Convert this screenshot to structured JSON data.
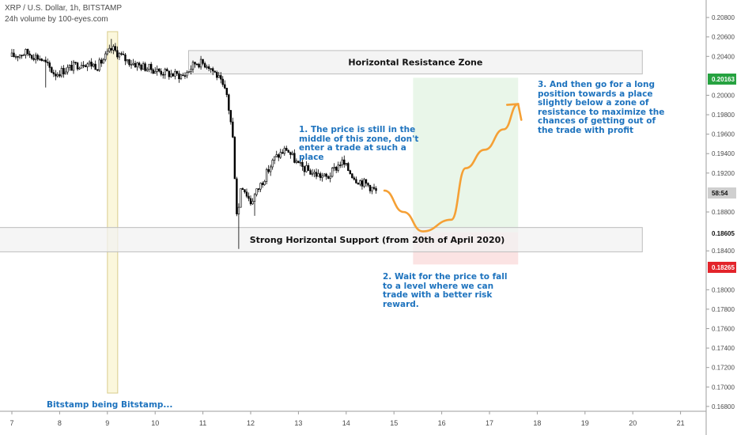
{
  "header": {
    "title": "XRP / U.S. Dollar, 1h, BITSTAMP",
    "subtitle": "24h volume by 100-eyes.com"
  },
  "annotations": {
    "note1": "1. The price is still in the\nmiddle of this zone, don't\nenter a trade at such a\nplace",
    "note2": "2. Wait for the price to fall\nto a level where we can\ntrade with a better risk\nreward.",
    "note3": "3. And then go for a long\nposition towards a place\nslightly below a zone of\nresistance to maximize the\nchances of getting out of\nthe trade with profit",
    "bitstamp": "Bitstamp being Bitstamp...",
    "resistance_label": "Horizontal Resistance Zone",
    "support_label": "Strong Horizontal Support (from 20th of April 2020)"
  },
  "price_tags": [
    {
      "value": "0.20163",
      "color": "#26a240"
    },
    {
      "value": "58:54",
      "color": "#cfcfcf"
    },
    {
      "value": "0.18605",
      "color": "#ffffff"
    },
    {
      "value": "0.18265",
      "color": "#e3242b"
    }
  ],
  "colors": {
    "resistance_fill": "#f2f2f2",
    "support_fill": "#f2f2f2",
    "target_zone": "#e9f6e9",
    "stop_zone": "#fbe3e3",
    "path": "#f5a035",
    "highlight": "#fbf7dc",
    "candles": "#000000"
  },
  "chart_data": {
    "type": "candlestick",
    "title": "XRP / U.S. Dollar, 1h, BITSTAMP",
    "x_ticks": [
      "7",
      "8",
      "9",
      "10",
      "11",
      "12",
      "13",
      "14",
      "15",
      "16",
      "17",
      "18",
      "19",
      "20",
      "21"
    ],
    "y_ticks": [
      "0.20800",
      "0.20600",
      "0.20400",
      "0.20000",
      "0.19800",
      "0.19600",
      "0.19400",
      "0.19200",
      "0.18800",
      "0.18400",
      "0.18000",
      "0.17800",
      "0.17600",
      "0.17400",
      "0.17200",
      "0.17000",
      "0.16800"
    ],
    "ylim": [
      0.1675,
      0.2098
    ],
    "price_path": [
      {
        "day": 7.0,
        "price": 0.204
      },
      {
        "day": 7.3,
        "price": 0.2044
      },
      {
        "day": 7.6,
        "price": 0.2038
      },
      {
        "day": 7.9,
        "price": 0.2022
      },
      {
        "day": 8.2,
        "price": 0.2028
      },
      {
        "day": 8.5,
        "price": 0.2034
      },
      {
        "day": 8.8,
        "price": 0.203
      },
      {
        "day": 9.1,
        "price": 0.2048
      },
      {
        "day": 9.4,
        "price": 0.2036
      },
      {
        "day": 9.7,
        "price": 0.203
      },
      {
        "day": 10.0,
        "price": 0.2026
      },
      {
        "day": 10.3,
        "price": 0.2022
      },
      {
        "day": 10.6,
        "price": 0.202
      },
      {
        "day": 10.85,
        "price": 0.2034
      },
      {
        "day": 11.1,
        "price": 0.2032
      },
      {
        "day": 11.3,
        "price": 0.202
      },
      {
        "day": 11.5,
        "price": 0.2
      },
      {
        "day": 11.62,
        "price": 0.196
      },
      {
        "day": 11.72,
        "price": 0.187
      },
      {
        "day": 11.8,
        "price": 0.191
      },
      {
        "day": 12.0,
        "price": 0.189
      },
      {
        "day": 12.25,
        "price": 0.1912
      },
      {
        "day": 12.5,
        "price": 0.1935
      },
      {
        "day": 12.75,
        "price": 0.1945
      },
      {
        "day": 13.0,
        "price": 0.1928
      },
      {
        "day": 13.3,
        "price": 0.192
      },
      {
        "day": 13.6,
        "price": 0.1915
      },
      {
        "day": 13.9,
        "price": 0.1932
      },
      {
        "day": 14.2,
        "price": 0.1914
      },
      {
        "day": 14.45,
        "price": 0.1908
      },
      {
        "day": 14.65,
        "price": 0.19
      }
    ],
    "extremes": [
      {
        "day": 7.7,
        "low": 0.2008
      },
      {
        "day": 9.1,
        "high": 0.2058
      },
      {
        "day": 11.75,
        "low": 0.1842
      },
      {
        "day": 12.1,
        "low": 0.1876
      }
    ],
    "zones": {
      "resistance": {
        "from_day": 10.7,
        "to_day": 20.2,
        "low": 0.2022,
        "high": 0.2046
      },
      "support": {
        "from_day": 6.4,
        "to_day": 20.2,
        "low": 0.1839,
        "high": 0.1864
      },
      "target": {
        "from_day": 15.4,
        "to_day": 17.6,
        "low": 0.1859,
        "high": 0.2018
      },
      "stop": {
        "from_day": 15.4,
        "to_day": 17.6,
        "low": 0.1826,
        "high": 0.1859
      }
    },
    "projection": [
      {
        "day": 14.8,
        "price": 0.1902
      },
      {
        "day": 15.2,
        "price": 0.188
      },
      {
        "day": 15.6,
        "price": 0.186
      },
      {
        "day": 16.2,
        "price": 0.1872
      },
      {
        "day": 16.5,
        "price": 0.1925
      },
      {
        "day": 16.9,
        "price": 0.1944
      },
      {
        "day": 17.3,
        "price": 0.1965
      },
      {
        "day": 17.6,
        "price": 0.1991
      }
    ],
    "highlight_day": 9.1
  }
}
